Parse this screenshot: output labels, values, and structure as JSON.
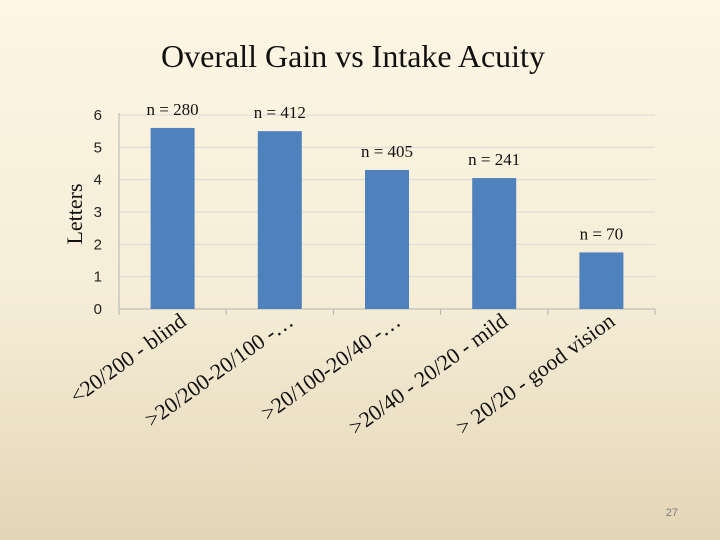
{
  "slide": {
    "title": "Overall Gain vs Intake Acuity",
    "page_number": "27"
  },
  "colors": {
    "bar": "#4f81bd",
    "grid": "#d9d9d9",
    "axis": "#b3b3b3"
  },
  "chart_data": {
    "type": "bar",
    "categories": [
      "<20/200 - blind",
      ">20/200-20/100 -…",
      ">20/100-20/40 -…",
      ">20/40 - 20/20 - mild",
      "> 20/20 - good vision"
    ],
    "values": [
      5.6,
      5.5,
      4.3,
      4.05,
      1.75
    ],
    "data_labels": [
      "n = 280",
      "n = 412",
      "n = 405",
      "n = 241",
      "n = 70"
    ],
    "y_ticks": [
      "0",
      "1",
      "2",
      "3",
      "4",
      "5",
      "6"
    ],
    "ylim": [
      0,
      6
    ],
    "ylabel": "Letters",
    "xlabel": "",
    "grid": true,
    "legend": "none"
  }
}
